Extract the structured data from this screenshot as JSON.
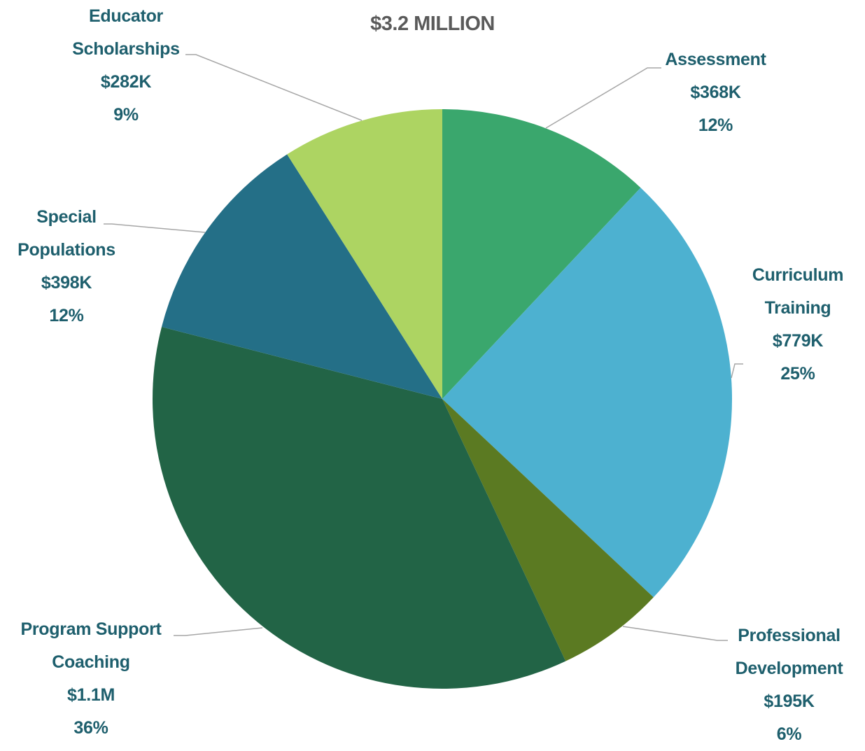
{
  "chart_data": {
    "type": "pie",
    "title": "$3.2 MILLION",
    "categories": [
      "Assessment",
      "Curriculum Training",
      "Professional Development",
      "Program Support Coaching",
      "Special Populations",
      "Educator Scholarships"
    ],
    "values": [
      12,
      25,
      6,
      36,
      12,
      9
    ],
    "value_labels": [
      "12%",
      "25%",
      "6%",
      "36%",
      "12%",
      "9%"
    ],
    "amounts": [
      368000,
      779000,
      195000,
      1100000,
      398000,
      282000
    ],
    "amount_labels": [
      "$368K",
      "$779K",
      "$195K",
      "$1.1M",
      "$398K",
      "$282K"
    ],
    "colors": [
      "#3aa76d",
      "#4db1d0",
      "#5b7a22",
      "#226446",
      "#246f87",
      "#add462"
    ]
  }
}
